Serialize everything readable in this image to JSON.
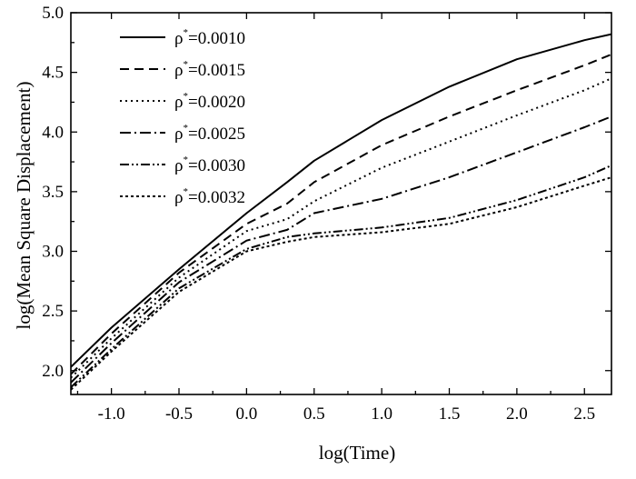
{
  "chart_data": {
    "type": "line",
    "title": "",
    "xlabel": "log(Time)",
    "ylabel": "log(Mean Square Displacement)",
    "xlim": [
      -1.3,
      2.7
    ],
    "ylim": [
      1.8,
      5.0
    ],
    "x_ticks": [
      -1.0,
      -0.5,
      0.0,
      0.5,
      1.0,
      1.5,
      2.0,
      2.5
    ],
    "x_tick_labels": [
      "-1.0",
      "-0.5",
      "0.0",
      "0.5",
      "1.0",
      "1.5",
      "2.0",
      "2.5"
    ],
    "y_ticks": [
      2.0,
      2.5,
      3.0,
      3.5,
      4.0,
      4.5,
      5.0
    ],
    "y_tick_labels": [
      "2.0",
      "2.5",
      "3.0",
      "3.5",
      "4.0",
      "4.5",
      "5.0"
    ],
    "grid": false,
    "legend_position": "top-left",
    "legend_symbol": "ρ",
    "legend_superscript": "*",
    "series": [
      {
        "name": "=0.0010",
        "dash": "solid",
        "x": [
          -1.3,
          -1.0,
          -0.5,
          0.0,
          0.3,
          0.5,
          1.0,
          1.5,
          2.0,
          2.5,
          2.7
        ],
        "y": [
          2.03,
          2.36,
          2.85,
          3.32,
          3.58,
          3.76,
          4.1,
          4.38,
          4.61,
          4.77,
          4.82
        ]
      },
      {
        "name": "=0.0015",
        "dash": "dashed",
        "x": [
          -1.3,
          -1.0,
          -0.5,
          0.0,
          0.3,
          0.5,
          1.0,
          1.5,
          2.0,
          2.5,
          2.7
        ],
        "y": [
          1.97,
          2.31,
          2.82,
          3.23,
          3.4,
          3.58,
          3.89,
          4.13,
          4.35,
          4.56,
          4.65
        ]
      },
      {
        "name": "=0.0020",
        "dash": "dotted",
        "x": [
          -1.3,
          -1.0,
          -0.5,
          0.0,
          0.3,
          0.5,
          1.0,
          1.5,
          2.0,
          2.5,
          2.7
        ],
        "y": [
          1.94,
          2.27,
          2.78,
          3.17,
          3.27,
          3.42,
          3.7,
          3.92,
          4.14,
          4.35,
          4.45
        ]
      },
      {
        "name": "=0.0025",
        "dash": "dash-dot",
        "x": [
          -1.3,
          -1.0,
          -0.5,
          0.0,
          0.3,
          0.5,
          1.0,
          1.5,
          2.0,
          2.5,
          2.7
        ],
        "y": [
          1.9,
          2.23,
          2.74,
          3.09,
          3.18,
          3.32,
          3.44,
          3.62,
          3.83,
          4.04,
          4.13
        ]
      },
      {
        "name": "=0.0030",
        "dash": "dash-dot-dot",
        "x": [
          -1.3,
          -1.0,
          -0.5,
          0.0,
          0.3,
          0.5,
          1.0,
          1.5,
          2.0,
          2.5,
          2.7
        ],
        "y": [
          1.86,
          2.18,
          2.69,
          3.02,
          3.12,
          3.15,
          3.2,
          3.28,
          3.43,
          3.62,
          3.72
        ]
      },
      {
        "name": "=0.0032",
        "dash": "short-dot",
        "x": [
          -1.3,
          -1.0,
          -0.5,
          0.0,
          0.3,
          0.5,
          1.0,
          1.5,
          2.0,
          2.5,
          2.7
        ],
        "y": [
          1.84,
          2.16,
          2.66,
          3.0,
          3.08,
          3.12,
          3.16,
          3.23,
          3.37,
          3.55,
          3.62
        ]
      }
    ]
  }
}
